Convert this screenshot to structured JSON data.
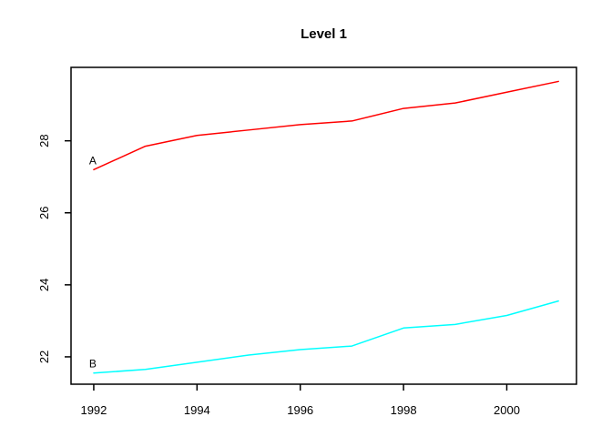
{
  "title": "Level 1",
  "colors": {
    "background": "#ffffff",
    "axis": "#000000",
    "series_a": "#ff0000",
    "series_b": "#00ffff"
  },
  "chart_data": {
    "type": "line",
    "title": "Level 1",
    "xlabel": "",
    "ylabel": "",
    "grid": false,
    "legend": "inline-first-point-labels",
    "x": [
      1992,
      1993,
      1994,
      1995,
      1996,
      1997,
      1998,
      1999,
      2000,
      2001
    ],
    "series": [
      {
        "name": "A",
        "color": "#ff0000",
        "values": [
          27.2,
          27.85,
          28.15,
          28.3,
          28.45,
          28.55,
          28.9,
          29.05,
          29.35,
          29.65
        ]
      },
      {
        "name": "B",
        "color": "#00ffff",
        "values": [
          21.55,
          21.65,
          21.85,
          22.05,
          22.2,
          22.3,
          22.8,
          22.9,
          23.15,
          23.55
        ]
      }
    ],
    "x_ticks": [
      1992,
      1994,
      1996,
      1998,
      2000
    ],
    "y_ticks": [
      22,
      24,
      26,
      28
    ],
    "x_range": [
      1991.56,
      2001.35
    ],
    "y_range": [
      21.24,
      30.04
    ]
  }
}
